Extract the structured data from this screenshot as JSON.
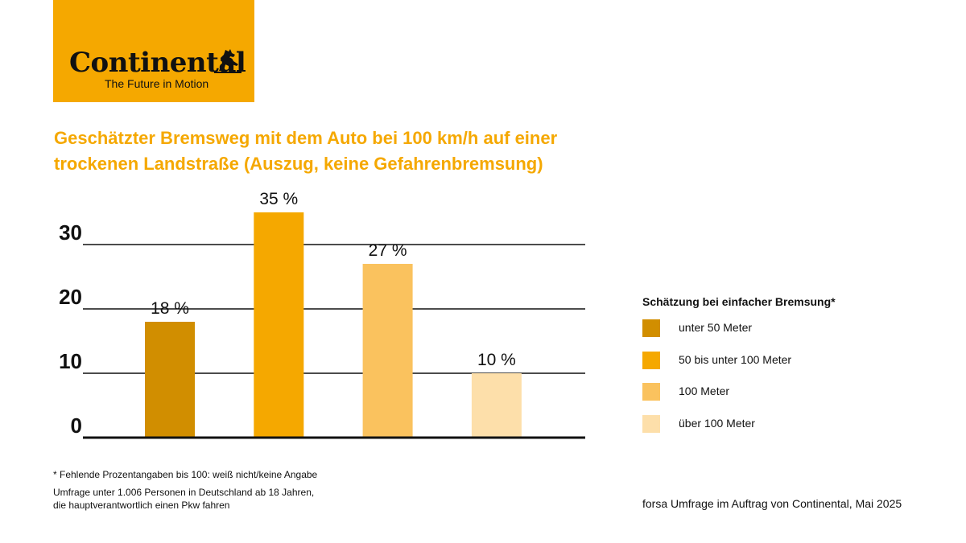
{
  "brand": {
    "name": "Continental",
    "tagline": "The Future in Motion",
    "color": "#F5A800"
  },
  "title_lines": [
    "Geschätzter Bremsweg mit dem Auto bei 100 km/h auf einer",
    "trockenen Landstraße (Auszug, keine Gefahrenbremsung)"
  ],
  "chart_data": {
    "type": "bar",
    "title": "Geschätzter Bremsweg mit dem Auto bei 100 km/h auf einer trockenen Landstraße (Auszug, keine Gefahrenbremsung)",
    "categories": [
      "unter 50 Meter",
      "50 bis unter 100 Meter",
      "100 Meter",
      "über 100 Meter"
    ],
    "values": [
      18,
      35,
      27,
      10
    ],
    "value_labels": [
      "18 %",
      "35 %",
      "27 %",
      "10 %"
    ],
    "colors": [
      "#D18E00",
      "#F5A800",
      "#FAC25E",
      "#FDDFAA"
    ],
    "yticks": [
      "0",
      "10",
      "20",
      "30"
    ],
    "ylim": [
      0,
      35
    ],
    "grid": true,
    "legend_title": "Schätzung bei einfacher Bremsung*",
    "legend_position": "right"
  },
  "footnote": "* Fehlende Prozentangaben bis 100: weiß nicht/keine Angabe",
  "survey_lines": [
    "Umfrage unter 1.006 Personen in Deutschland ab 18 Jahren,",
    "die hauptverantwortlich einen Pkw fahren"
  ],
  "source": "forsa Umfrage im Auftrag von Continental, Mai 2025"
}
